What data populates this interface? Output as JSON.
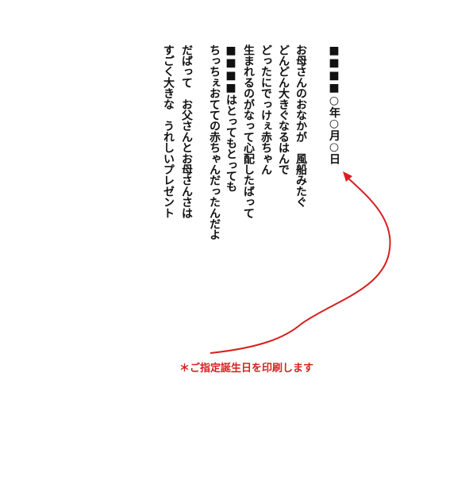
{
  "date_line": "■■■■○年○月○日",
  "poem": {
    "lines": [
      "お母さんのおなかが　風船みたぐ",
      "どんどん大きぐなるはんで",
      "どったにでっけぇ赤ちゃん",
      "生まれるのがなって心配したばって",
      "■■■■はとってもとっても",
      "ちっちぇおてての赤ちゃんだったんだよ",
      "だばって　お父さんとお母さんさは",
      "すごく大きな　うれしいプレゼント"
    ]
  },
  "note": "＊ご指定誕生日を印刷します"
}
